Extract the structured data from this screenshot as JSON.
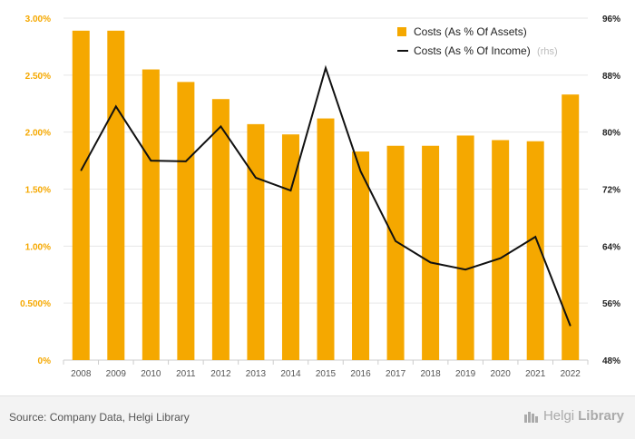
{
  "chart_data": {
    "type": "bar+line",
    "categories": [
      "2008",
      "2009",
      "2010",
      "2011",
      "2012",
      "2013",
      "2014",
      "2015",
      "2016",
      "2017",
      "2018",
      "2019",
      "2020",
      "2021",
      "2022"
    ],
    "series": [
      {
        "name": "Costs (As % Of Assets)",
        "type": "bar",
        "axis": "left",
        "color": "#f5a800",
        "values": [
          2.89,
          2.89,
          2.55,
          2.44,
          2.29,
          2.07,
          1.98,
          2.12,
          1.83,
          1.88,
          1.88,
          1.97,
          1.93,
          1.92,
          2.33
        ]
      },
      {
        "name": "Costs (As % Of Income)",
        "legend_suffix": "(rhs)",
        "type": "line",
        "axis": "right",
        "color": "#111111",
        "values": [
          74.6,
          83.6,
          76.0,
          75.9,
          80.8,
          73.6,
          71.8,
          89.0,
          74.5,
          64.7,
          61.7,
          60.7,
          62.3,
          65.3,
          52.8
        ]
      }
    ],
    "y_left": {
      "min": 0,
      "max": 3.0,
      "ticks": [
        "0%",
        "0.500%",
        "1.00%",
        "1.50%",
        "2.00%",
        "2.50%",
        "3.00%"
      ],
      "tick_values": [
        0,
        0.5,
        1.0,
        1.5,
        2.0,
        2.5,
        3.0
      ]
    },
    "y_right": {
      "min": 48,
      "max": 96,
      "ticks": [
        "48%",
        "56%",
        "64%",
        "72%",
        "80%",
        "88%",
        "96%"
      ],
      "tick_values": [
        48,
        56,
        64,
        72,
        80,
        88,
        96
      ]
    },
    "grid": true,
    "legend_position": "top-right"
  },
  "footer": {
    "source": "Source: Company Data, Helgi Library",
    "brand_part1": "Helgi",
    "brand_part2": "Library"
  }
}
